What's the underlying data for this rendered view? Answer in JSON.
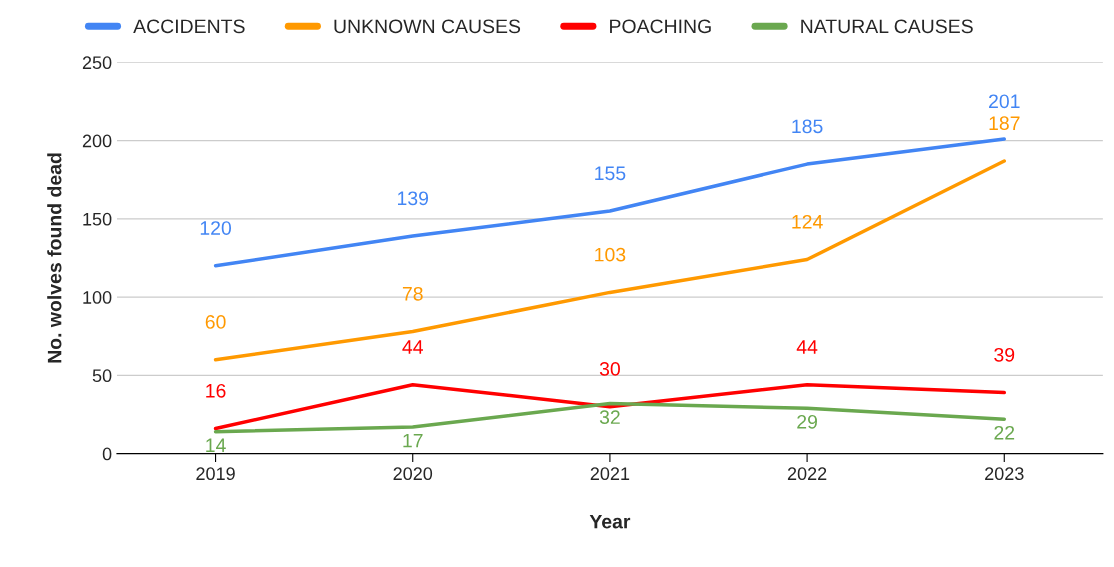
{
  "chart_data": {
    "type": "line",
    "xlabel": "Year",
    "ylabel": "No. wolves found dead",
    "categories": [
      "2019",
      "2020",
      "2021",
      "2022",
      "2023"
    ],
    "series": [
      {
        "name": "ACCIDENTS",
        "color": "#4285f4",
        "values": [
          120,
          139,
          155,
          185,
          201
        ]
      },
      {
        "name": "UNKNOWN CAUSES",
        "color": "#ff9900",
        "values": [
          60,
          78,
          103,
          124,
          187
        ]
      },
      {
        "name": "POACHING",
        "color": "#ff0000",
        "values": [
          16,
          44,
          30,
          44,
          39
        ]
      },
      {
        "name": "NATURAL CAUSES",
        "color": "#6aa84f",
        "values": [
          14,
          17,
          32,
          29,
          22
        ]
      }
    ],
    "ylim": [
      0,
      250
    ],
    "yticks": [
      0,
      50,
      100,
      150,
      200,
      250
    ],
    "grid": "y",
    "legend": "top",
    "data_labels": true,
    "marker": "none",
    "line_style": "solid"
  }
}
